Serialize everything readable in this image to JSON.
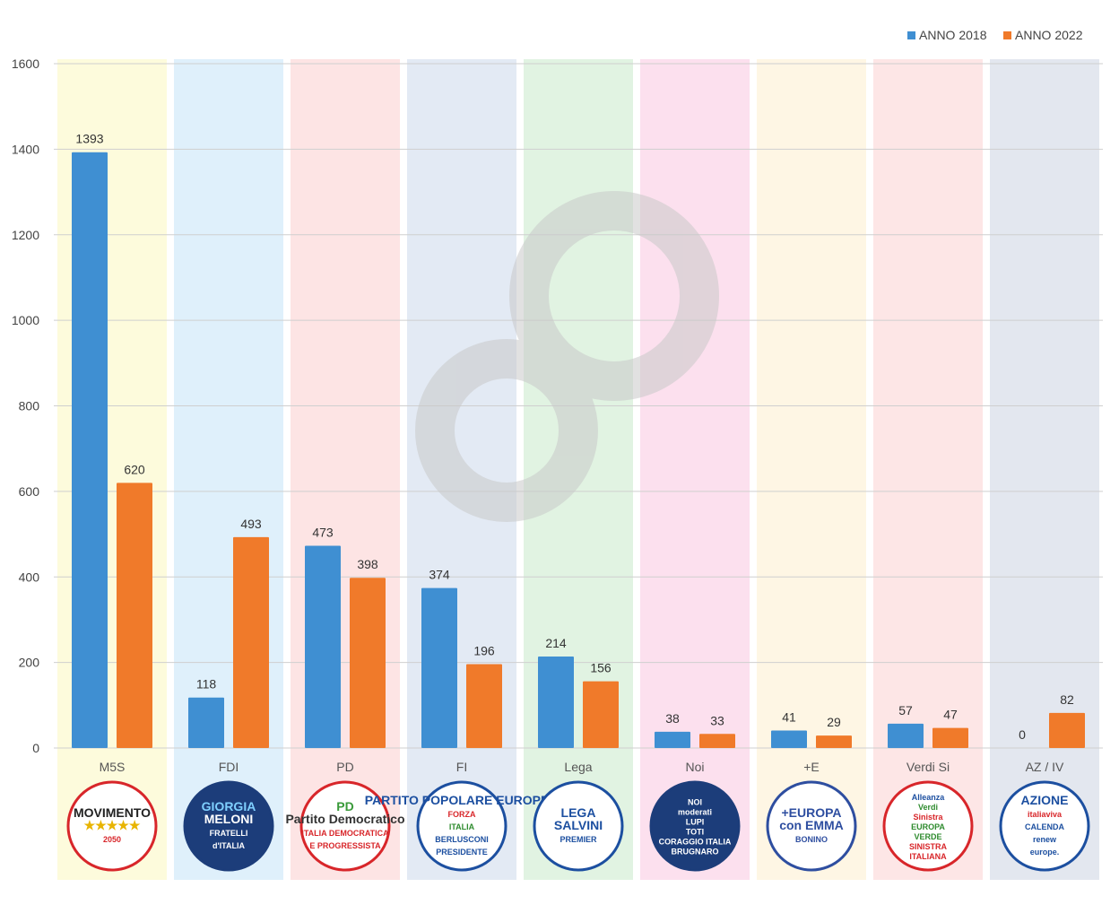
{
  "chart_data": {
    "type": "bar",
    "categories": [
      "M5S",
      "FDI",
      "PD",
      "FI",
      "Lega",
      "Noi",
      "+E",
      "Verdi Si",
      "AZ / IV"
    ],
    "series": [
      {
        "name": "ANNO 2018",
        "values": [
          1393,
          118,
          473,
          374,
          214,
          38,
          41,
          57,
          0
        ],
        "color": "#3f8fd2"
      },
      {
        "name": "ANNO 2022",
        "values": [
          620,
          493,
          398,
          196,
          156,
          33,
          29,
          47,
          82
        ],
        "color": "#f07a2a"
      }
    ],
    "ylim": [
      0,
      1600
    ],
    "yticks": [
      0,
      200,
      400,
      600,
      800,
      1000,
      1200,
      1400,
      1600
    ],
    "grid": true,
    "legend_position": "top-right",
    "column_colors": [
      "#fdfbdc",
      "#dff0fb",
      "#fde4e4",
      "#e3eaf4",
      "#e1f3e2",
      "#fce0ee",
      "#fef6e4",
      "#fde6e6",
      "#e3e7ef"
    ]
  },
  "logos": [
    {
      "icon": "m5s-logo",
      "lines": [
        "MOVIMENTO",
        "★★★★★",
        "2050"
      ]
    },
    {
      "icon": "fdi-logo",
      "lines": [
        "GIORGIA",
        "MELONI",
        "FRATELLI",
        "d'ITALIA"
      ]
    },
    {
      "icon": "pd-logo",
      "lines": [
        "PD",
        "Partito Democratico",
        "ITALIA DEMOCRATICA",
        "E PROGRESSISTA"
      ]
    },
    {
      "icon": "fi-logo",
      "lines": [
        "PARTITO POPOLARE EUROPEO",
        "FORZA",
        "ITALIA",
        "BERLUSCONI",
        "PRESIDENTE"
      ]
    },
    {
      "icon": "lega-logo",
      "lines": [
        "LEGA",
        "SALVINI",
        "PREMIER"
      ]
    },
    {
      "icon": "noi-moderati-logo",
      "lines": [
        "NOI",
        "moderati",
        "LUPI",
        "TOTI",
        "CORAGGIO ITALIA",
        "BRUGNARO"
      ]
    },
    {
      "icon": "piu-europa-logo",
      "lines": [
        "+EUROPA",
        "con EMMA",
        "BONINO"
      ]
    },
    {
      "icon": "verdi-sinistra-logo",
      "lines": [
        "Alleanza",
        "Verdi",
        "Sinistra",
        "EUROPA",
        "VERDE",
        "SINISTRA",
        "ITALIANA"
      ]
    },
    {
      "icon": "azione-iv-logo",
      "lines": [
        "AZIONE",
        "italiaviva",
        "CALENDA",
        "renew",
        "europe."
      ]
    }
  ]
}
